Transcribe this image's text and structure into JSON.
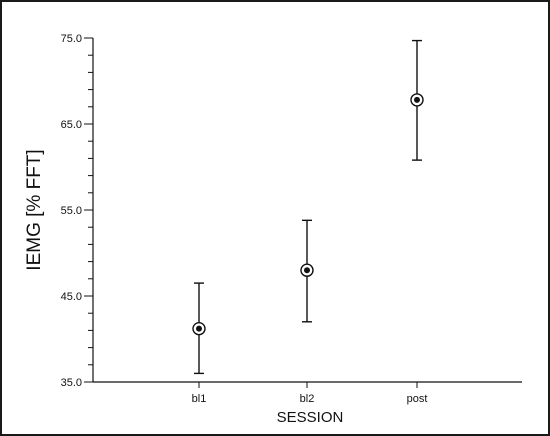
{
  "chart_data": {
    "type": "scatter",
    "title": "",
    "xlabel": "SESSION",
    "ylabel": "IEMG [% FFT]",
    "categories": [
      "bl1",
      "bl2",
      "post"
    ],
    "values": [
      41.2,
      48.0,
      67.8
    ],
    "error_low": [
      36.0,
      42.0,
      60.8
    ],
    "error_high": [
      46.5,
      53.8,
      74.7
    ],
    "ylim": [
      35.0,
      75.0
    ],
    "yticks": [
      "35.0",
      "45.0",
      "55.0",
      "65.0",
      "75.0"
    ],
    "ytick_values": [
      35,
      45,
      55,
      65,
      75
    ],
    "yminor_step": 2,
    "grid": false,
    "legend": "none",
    "marker": "circled-dot",
    "colors": {
      "ink": "#111111",
      "background": "#ffffff"
    }
  }
}
